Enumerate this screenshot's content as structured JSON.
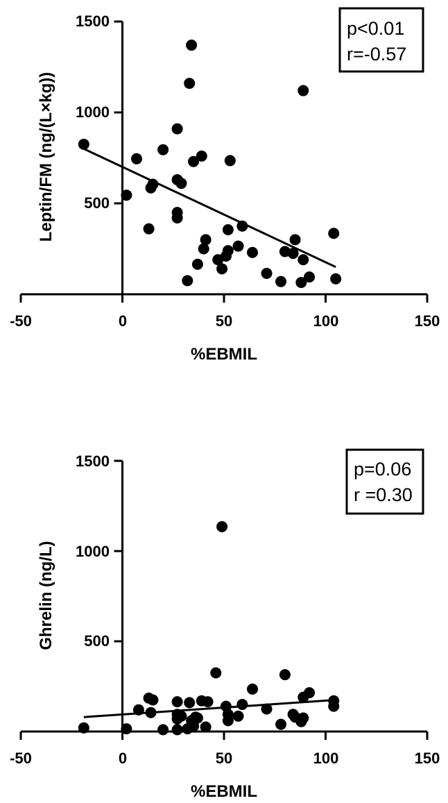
{
  "chart_data": [
    {
      "type": "scatter",
      "title": "",
      "xlabel": "%EBMIL",
      "ylabel": "Leptin/FM (ng/(L×kg))",
      "xlim": [
        -50,
        150
      ],
      "ylim": [
        0,
        1500
      ],
      "xticks": [
        -50,
        0,
        50,
        100,
        150
      ],
      "yticks": [
        500,
        1000,
        1500
      ],
      "grid": false,
      "stats": [
        "p<0.01",
        "r=-0.57"
      ],
      "stats_box_position": "top-right",
      "marker_color": "#000000",
      "regression_line": {
        "x": [
          -19,
          105
        ],
        "y": [
          800,
          150
        ]
      },
      "points": [
        {
          "x": -19,
          "y": 825
        },
        {
          "x": 2,
          "y": 545
        },
        {
          "x": 7,
          "y": 745
        },
        {
          "x": 13,
          "y": 360
        },
        {
          "x": 14,
          "y": 585
        },
        {
          "x": 15,
          "y": 605
        },
        {
          "x": 20,
          "y": 795
        },
        {
          "x": 27,
          "y": 910
        },
        {
          "x": 27,
          "y": 630
        },
        {
          "x": 27,
          "y": 450
        },
        {
          "x": 27,
          "y": 420
        },
        {
          "x": 29,
          "y": 610
        },
        {
          "x": 32,
          "y": 75
        },
        {
          "x": 33,
          "y": 1160
        },
        {
          "x": 34,
          "y": 1370
        },
        {
          "x": 35,
          "y": 730
        },
        {
          "x": 37,
          "y": 165
        },
        {
          "x": 39,
          "y": 760
        },
        {
          "x": 40,
          "y": 250
        },
        {
          "x": 41,
          "y": 300
        },
        {
          "x": 47,
          "y": 190
        },
        {
          "x": 49,
          "y": 140
        },
        {
          "x": 51,
          "y": 210
        },
        {
          "x": 52,
          "y": 240
        },
        {
          "x": 52,
          "y": 355
        },
        {
          "x": 53,
          "y": 735
        },
        {
          "x": 57,
          "y": 265
        },
        {
          "x": 59,
          "y": 375
        },
        {
          "x": 64,
          "y": 230
        },
        {
          "x": 71,
          "y": 115
        },
        {
          "x": 78,
          "y": 70
        },
        {
          "x": 80,
          "y": 235
        },
        {
          "x": 84,
          "y": 225
        },
        {
          "x": 85,
          "y": 300
        },
        {
          "x": 88,
          "y": 65
        },
        {
          "x": 89,
          "y": 190
        },
        {
          "x": 89,
          "y": 1120
        },
        {
          "x": 92,
          "y": 95
        },
        {
          "x": 104,
          "y": 335
        },
        {
          "x": 105,
          "y": 85
        }
      ]
    },
    {
      "type": "scatter",
      "title": "",
      "xlabel": "%EBMIL",
      "ylabel": "Ghrelin (ng/L)",
      "xlim": [
        -50,
        150
      ],
      "ylim": [
        0,
        1500
      ],
      "xticks": [
        -50,
        0,
        50,
        100,
        150
      ],
      "yticks": [
        500,
        1000,
        1500
      ],
      "grid": false,
      "stats": [
        "p=0.06",
        "r =0.30"
      ],
      "stats_box_position": "top-right",
      "marker_color": "#000000",
      "regression_line": {
        "x": [
          -19,
          105
        ],
        "y": [
          80,
          175
        ]
      },
      "points": [
        {
          "x": -19,
          "y": 20
        },
        {
          "x": 2,
          "y": 15
        },
        {
          "x": 8,
          "y": 120
        },
        {
          "x": 13,
          "y": 185
        },
        {
          "x": 14,
          "y": 105
        },
        {
          "x": 15,
          "y": 175
        },
        {
          "x": 20,
          "y": 10
        },
        {
          "x": 27,
          "y": 165
        },
        {
          "x": 27,
          "y": 95
        },
        {
          "x": 27,
          "y": 70
        },
        {
          "x": 27,
          "y": 10
        },
        {
          "x": 29,
          "y": 85
        },
        {
          "x": 32,
          "y": 15
        },
        {
          "x": 33,
          "y": 160
        },
        {
          "x": 34,
          "y": 60
        },
        {
          "x": 35,
          "y": 30
        },
        {
          "x": 36,
          "y": 80
        },
        {
          "x": 37,
          "y": 75
        },
        {
          "x": 39,
          "y": 170
        },
        {
          "x": 41,
          "y": 25
        },
        {
          "x": 42,
          "y": 165
        },
        {
          "x": 46,
          "y": 325
        },
        {
          "x": 49,
          "y": 1135
        },
        {
          "x": 51,
          "y": 140
        },
        {
          "x": 52,
          "y": 95
        },
        {
          "x": 52,
          "y": 60
        },
        {
          "x": 57,
          "y": 85
        },
        {
          "x": 59,
          "y": 150
        },
        {
          "x": 64,
          "y": 235
        },
        {
          "x": 71,
          "y": 125
        },
        {
          "x": 78,
          "y": 40
        },
        {
          "x": 80,
          "y": 315
        },
        {
          "x": 84,
          "y": 95
        },
        {
          "x": 85,
          "y": 80
        },
        {
          "x": 88,
          "y": 55
        },
        {
          "x": 89,
          "y": 190
        },
        {
          "x": 89,
          "y": 75
        },
        {
          "x": 92,
          "y": 215
        },
        {
          "x": 104,
          "y": 170
        },
        {
          "x": 104,
          "y": 140
        }
      ]
    }
  ]
}
